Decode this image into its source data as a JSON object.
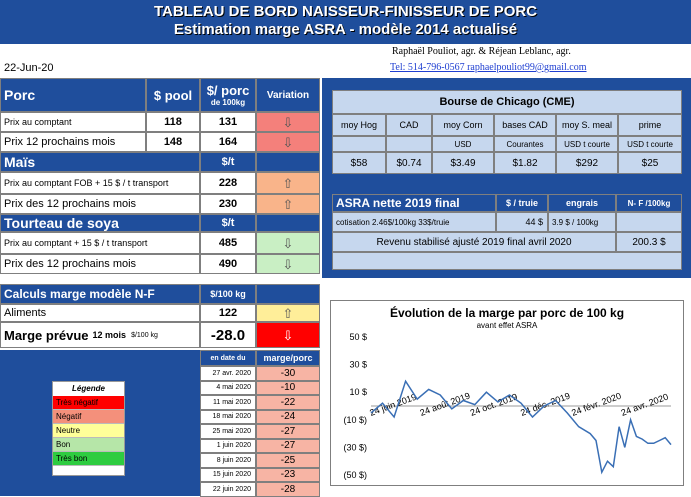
{
  "title": {
    "line1": "TABLEAU DE BORD NAISSEUR-FINISSEUR DE PORC",
    "line2": "Estimation marge ASRA - modèle 2014 actualisé"
  },
  "authors": {
    "names": "Raphaël Pouliot, agr.   &   Réjean Leblanc, agr.",
    "contact": "Tel:    514-796-0567   raphaelpouliot99@gmail.com"
  },
  "date": "22-Jun-20",
  "porc": {
    "header": "Porc",
    "col_pool": "$ pool",
    "col_porc": "$/ porc",
    "col_porc_sub": "de 100kg",
    "col_variation": "Variation",
    "rows": [
      {
        "label": "Prix au comptant",
        "pool": "118",
        "porc": "131"
      },
      {
        "label": "Prix 12 prochains mois",
        "pool": "148",
        "porc": "164"
      }
    ]
  },
  "mais": {
    "header": "Maïs",
    "unit": "$/t",
    "rows": [
      {
        "label": "Prix au comptant  FOB + 15 $ / t transport",
        "value": "228"
      },
      {
        "label": "Prix des 12 prochains mois",
        "value": "230"
      }
    ]
  },
  "soya": {
    "header": "Tourteau de soya",
    "unit": "$/t",
    "rows": [
      {
        "label": "Prix au comptant  + 15 $ / t  transport",
        "value": "485"
      },
      {
        "label": "Prix des 12 prochains mois",
        "value": "490"
      }
    ]
  },
  "calculs": {
    "header": "Calculs marge  modèle N-F",
    "unit": "$/100 kg",
    "aliments_label": "Aliments",
    "aliments_value": "122",
    "marge_label": "Marge prévue",
    "marge_sub": "12 mois",
    "marge_unit": "$/100 kg",
    "marge_value": "-28.0"
  },
  "history": {
    "col_date": "en date du",
    "col_marge": "marge/porc",
    "rows": [
      {
        "date": "27 avr. 2020",
        "value": "-30"
      },
      {
        "date": "4 mai 2020",
        "value": "-10"
      },
      {
        "date": "11 mai 2020",
        "value": "-22"
      },
      {
        "date": "18 mai 2020",
        "value": "-24"
      },
      {
        "date": "25 mai 2020",
        "value": "-27"
      },
      {
        "date": "1 juin 2020",
        "value": "-27"
      },
      {
        "date": "8 juin 2020",
        "value": "-25"
      },
      {
        "date": "15 juin 2020",
        "value": "-23"
      },
      {
        "date": "22 juin 2020",
        "value": "-28"
      }
    ]
  },
  "legend": {
    "title": "Légende",
    "items": [
      {
        "label": "Très négatif",
        "color": "#ff0000"
      },
      {
        "label": "Négatif",
        "color": "#f4907b"
      },
      {
        "label": "Neutre",
        "color": "#ffff99"
      },
      {
        "label": "Bon",
        "color": "#b6e6a8"
      },
      {
        "label": "Très bon",
        "color": "#2ecc40"
      }
    ]
  },
  "chicago": {
    "header": "Bourse de Chicago (CME)",
    "columns": [
      {
        "head": "moy Hog",
        "unit": "",
        "value": "$58"
      },
      {
        "head": "CAD",
        "unit": "",
        "value": "$0.74"
      },
      {
        "head": "moy Corn",
        "unit": "USD",
        "value": "$3.49"
      },
      {
        "head": "bases CAD",
        "unit": "Courantes",
        "value": "$1.82"
      },
      {
        "head": "moy S. meal",
        "unit": "USD t courte",
        "value": "$292"
      },
      {
        "head": "prime",
        "unit": "USD t courte",
        "value": "$25"
      }
    ]
  },
  "asra": {
    "header": "ASRA nette 2019 final",
    "col_truie": "$ / truie",
    "col_engrais": "engrais",
    "col_nf": "N- F /100kg",
    "cotisation_label": "cotisation 2.46$/100kg  33$/truie",
    "truie_value": "44  $",
    "engrais_value": "3.9  $ / 100kg",
    "revenu_label": "Revenu stabilisé ajusté 2019 final  avril 2020",
    "revenu_value": "200.3 $"
  },
  "chart_data": {
    "type": "line",
    "title": "Évolution de la marge par porc de 100 kg",
    "subtitle": "avant effet ASRA",
    "y_ticks": [
      "50 $",
      "30 $",
      "10 $",
      "(10 $)",
      "(30 $)",
      "(50 $)"
    ],
    "x_ticks": [
      "24 juin 2019",
      "24 août 2019",
      "24 oct. 2019",
      "24 déc. 2019",
      "24 févr. 2020",
      "24 avr. 2020"
    ],
    "ylim": [
      -50,
      50
    ],
    "series": [
      {
        "x": [
          "2019-06-24",
          "2019-07-08",
          "2019-07-22",
          "2019-08-05",
          "2019-08-19",
          "2019-09-02",
          "2019-09-16",
          "2019-09-30",
          "2019-10-14",
          "2019-10-28",
          "2019-11-11",
          "2019-11-25",
          "2019-12-09",
          "2019-12-23",
          "2020-01-06",
          "2020-01-20",
          "2020-02-03",
          "2020-02-17",
          "2020-03-02",
          "2020-03-16",
          "2020-03-23",
          "2020-03-30",
          "2020-04-06",
          "2020-04-13",
          "2020-04-20",
          "2020-04-27",
          "2020-05-04",
          "2020-05-11",
          "2020-05-18",
          "2020-05-25",
          "2020-06-01",
          "2020-06-08",
          "2020-06-15",
          "2020-06-22"
        ],
        "y": [
          -5,
          2,
          -8,
          18,
          5,
          12,
          8,
          -2,
          4,
          1,
          10,
          3,
          8,
          2,
          -8,
          0,
          4,
          -5,
          -15,
          -20,
          -25,
          -48,
          -40,
          -44,
          -15,
          -30,
          -10,
          -22,
          -24,
          -27,
          -27,
          -25,
          -23,
          -28
        ]
      }
    ]
  }
}
